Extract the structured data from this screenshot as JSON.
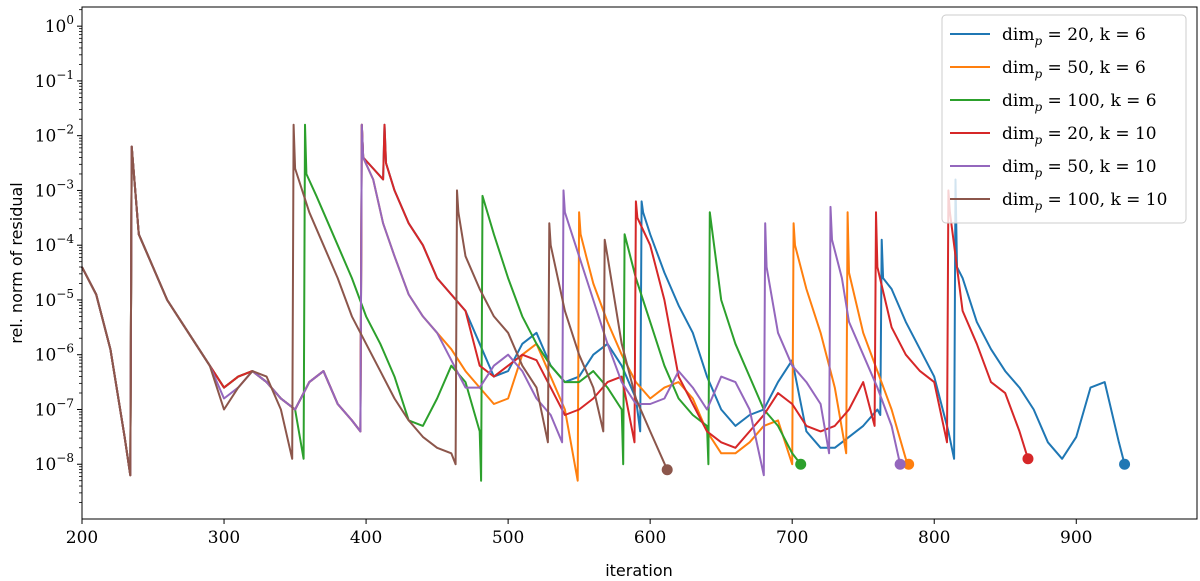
{
  "chart_data": {
    "type": "line",
    "xlabel": "iteration",
    "ylabel": "rel. norm of residual",
    "xlim": [
      200,
      985
    ],
    "ylim_exponent": [
      -9,
      0.35
    ],
    "y_scale": "log",
    "x_ticks": [
      200,
      300,
      400,
      500,
      600,
      700,
      800,
      900
    ],
    "x_tick_labels": [
      "200",
      "300",
      "400",
      "500",
      "600",
      "700",
      "800",
      "900"
    ],
    "y_ticks": [
      {
        "exp": 0,
        "mantissa": "10",
        "sup": "0"
      },
      {
        "exp": -1,
        "mantissa": "10",
        "sup": "−1"
      },
      {
        "exp": -2,
        "mantissa": "10",
        "sup": "−2"
      },
      {
        "exp": -3,
        "mantissa": "10",
        "sup": "−3"
      },
      {
        "exp": -4,
        "mantissa": "10",
        "sup": "−4"
      },
      {
        "exp": -5,
        "mantissa": "10",
        "sup": "−5"
      },
      {
        "exp": -6,
        "mantissa": "10",
        "sup": "−6"
      },
      {
        "exp": -7,
        "mantissa": "10",
        "sup": "−7"
      },
      {
        "exp": -8,
        "mantissa": "10",
        "sup": "−8"
      }
    ],
    "legend_position": "top-right",
    "series": [
      {
        "name": "dim_p = 20, k = 6",
        "legend_label": "dimp = 20, k = 6",
        "color": "#1f77b4",
        "x": [
          200,
          210,
          220,
          230,
          234,
          235,
          240,
          250,
          260,
          270,
          280,
          290,
          300,
          310,
          320,
          330,
          340,
          350,
          360,
          370,
          380,
          390,
          396,
          397,
          398,
          405,
          412,
          413,
          414,
          420,
          430,
          440,
          450,
          460,
          470,
          480,
          490,
          500,
          510,
          520,
          530,
          540,
          550,
          560,
          570,
          580,
          590,
          593,
          594,
          595,
          600,
          610,
          620,
          630,
          640,
          650,
          660,
          670,
          680,
          690,
          700,
          710,
          720,
          730,
          740,
          750,
          760,
          762,
          763,
          764,
          770,
          780,
          790,
          800,
          810,
          814,
          815,
          816,
          820,
          830,
          840,
          850,
          860,
          870,
          880,
          890,
          900,
          910,
          920,
          930,
          934
        ],
        "y": [
          -4.4,
          -4.9,
          -5.9,
          -7.5,
          -8.2,
          -2.2,
          -3.8,
          -4.4,
          -5.0,
          -5.4,
          -5.8,
          -6.2,
          -6.6,
          -6.4,
          -6.3,
          -6.5,
          -6.8,
          -7.0,
          -6.5,
          -6.3,
          -6.9,
          -7.2,
          -7.4,
          -1.8,
          -2.4,
          -2.6,
          -2.8,
          -1.8,
          -2.5,
          -3.0,
          -3.6,
          -4.0,
          -4.6,
          -4.9,
          -5.2,
          -5.8,
          -6.4,
          -6.3,
          -5.8,
          -5.6,
          -6.2,
          -6.5,
          -6.4,
          -6.0,
          -5.8,
          -6.2,
          -6.8,
          -7.4,
          -3.2,
          -3.4,
          -3.8,
          -4.5,
          -5.1,
          -5.6,
          -6.4,
          -7.0,
          -7.3,
          -7.1,
          -7.0,
          -6.5,
          -6.1,
          -7.4,
          -7.7,
          -7.7,
          -7.5,
          -7.3,
          -7.0,
          -7.1,
          -3.9,
          -4.6,
          -4.8,
          -5.4,
          -5.9,
          -6.4,
          -7.4,
          -7.9,
          -2.8,
          -4.4,
          -4.6,
          -5.4,
          -5.9,
          -6.3,
          -6.6,
          -7.0,
          -7.6,
          -7.9,
          -7.5,
          -6.6,
          -6.5,
          -7.6,
          -8.0
        ]
      },
      {
        "name": "dim_p = 50, k = 6",
        "legend_label": "dimp = 50, k = 6",
        "color": "#ff7f0e",
        "x": [
          200,
          210,
          220,
          230,
          234,
          235,
          240,
          250,
          260,
          270,
          280,
          290,
          300,
          310,
          320,
          330,
          340,
          350,
          360,
          370,
          380,
          390,
          396,
          397,
          398,
          405,
          412,
          420,
          430,
          440,
          450,
          460,
          470,
          480,
          490,
          500,
          510,
          520,
          530,
          540,
          549,
          550,
          551,
          555,
          560,
          570,
          580,
          590,
          600,
          610,
          620,
          630,
          640,
          650,
          660,
          670,
          680,
          690,
          700,
          701,
          702,
          710,
          720,
          730,
          738,
          739,
          740,
          750,
          760,
          770,
          780,
          782
        ],
        "y": [
          -4.4,
          -4.9,
          -5.9,
          -7.5,
          -8.2,
          -2.2,
          -3.8,
          -4.4,
          -5.0,
          -5.4,
          -5.8,
          -6.2,
          -6.6,
          -6.4,
          -6.3,
          -6.5,
          -6.8,
          -7.0,
          -6.5,
          -6.3,
          -6.9,
          -7.2,
          -7.4,
          -1.8,
          -2.4,
          -2.8,
          -3.6,
          -4.2,
          -4.9,
          -5.3,
          -5.6,
          -5.9,
          -6.3,
          -6.6,
          -6.9,
          -6.8,
          -6.0,
          -5.8,
          -6.4,
          -7.0,
          -8.3,
          -3.4,
          -3.8,
          -4.2,
          -4.7,
          -5.4,
          -6.0,
          -6.5,
          -6.8,
          -6.6,
          -6.5,
          -6.8,
          -7.4,
          -7.8,
          -7.8,
          -7.6,
          -7.3,
          -7.2,
          -8.0,
          -3.6,
          -4.0,
          -4.8,
          -5.6,
          -6.6,
          -7.8,
          -3.4,
          -4.5,
          -5.6,
          -6.3,
          -7.0,
          -7.9,
          -8.0
        ]
      },
      {
        "name": "dim_p = 100, k = 6",
        "legend_label": "dimp = 100, k = 6",
        "color": "#2ca02c",
        "x": [
          200,
          210,
          220,
          230,
          234,
          235,
          240,
          250,
          260,
          270,
          280,
          290,
          300,
          310,
          320,
          330,
          340,
          350,
          356,
          357,
          358,
          365,
          370,
          380,
          390,
          400,
          410,
          420,
          430,
          440,
          450,
          460,
          470,
          480,
          481,
          482,
          490,
          500,
          510,
          520,
          530,
          540,
          550,
          560,
          570,
          580,
          581,
          582,
          590,
          600,
          610,
          620,
          630,
          640,
          641,
          642,
          650,
          660,
          670,
          680,
          690,
          700,
          706
        ],
        "y": [
          -4.4,
          -4.9,
          -5.9,
          -7.5,
          -8.2,
          -2.2,
          -3.8,
          -4.4,
          -5.0,
          -5.4,
          -5.8,
          -6.2,
          -6.6,
          -6.4,
          -6.3,
          -6.5,
          -6.8,
          -7.0,
          -7.9,
          -1.8,
          -2.7,
          -3.1,
          -3.4,
          -4.0,
          -4.6,
          -5.3,
          -5.8,
          -6.4,
          -7.2,
          -7.3,
          -6.8,
          -6.2,
          -6.5,
          -7.4,
          -8.3,
          -3.1,
          -3.8,
          -4.6,
          -5.3,
          -5.8,
          -6.2,
          -6.5,
          -6.5,
          -6.3,
          -6.6,
          -7.0,
          -8.0,
          -3.8,
          -4.6,
          -5.4,
          -6.2,
          -6.8,
          -7.1,
          -7.3,
          -8.0,
          -3.4,
          -5.0,
          -5.8,
          -6.4,
          -7.0,
          -7.3,
          -7.8,
          -8.0
        ]
      },
      {
        "name": "dim_p = 20, k = 10",
        "legend_label": "dimp = 20, k = 10",
        "color": "#d62728",
        "x": [
          200,
          210,
          220,
          230,
          234,
          235,
          240,
          250,
          260,
          270,
          280,
          290,
          300,
          310,
          320,
          330,
          340,
          350,
          360,
          370,
          380,
          390,
          396,
          397,
          398,
          405,
          412,
          413,
          414,
          420,
          430,
          440,
          450,
          460,
          470,
          480,
          490,
          500,
          510,
          520,
          530,
          540,
          550,
          560,
          570,
          580,
          589,
          590,
          591,
          600,
          610,
          620,
          630,
          640,
          650,
          660,
          670,
          680,
          690,
          700,
          710,
          720,
          730,
          740,
          750,
          758,
          759,
          760,
          770,
          780,
          790,
          800,
          809,
          810,
          811,
          820,
          830,
          840,
          850,
          860,
          866
        ],
        "y": [
          -4.4,
          -4.9,
          -5.9,
          -7.5,
          -8.2,
          -2.2,
          -3.8,
          -4.4,
          -5.0,
          -5.4,
          -5.8,
          -6.2,
          -6.6,
          -6.4,
          -6.3,
          -6.5,
          -6.8,
          -7.0,
          -6.5,
          -6.3,
          -6.9,
          -7.2,
          -7.4,
          -1.8,
          -2.4,
          -2.6,
          -2.8,
          -1.8,
          -2.5,
          -3.0,
          -3.6,
          -4.0,
          -4.6,
          -4.9,
          -5.2,
          -6.2,
          -6.4,
          -6.2,
          -6.0,
          -6.1,
          -6.6,
          -7.1,
          -7.0,
          -6.8,
          -6.5,
          -6.4,
          -7.6,
          -3.2,
          -3.5,
          -4.0,
          -5.0,
          -6.4,
          -6.9,
          -7.4,
          -7.6,
          -7.7,
          -7.4,
          -7.1,
          -6.7,
          -6.9,
          -7.3,
          -7.4,
          -7.3,
          -7.0,
          -6.5,
          -7.3,
          -3.4,
          -4.4,
          -5.5,
          -6.0,
          -6.3,
          -6.5,
          -7.6,
          -3.0,
          -3.4,
          -5.2,
          -5.8,
          -6.5,
          -6.7,
          -7.4,
          -7.9
        ]
      },
      {
        "name": "dim_p = 50, k = 10",
        "legend_label": "dimp = 50, k = 10",
        "color": "#9467bd",
        "x": [
          200,
          210,
          220,
          230,
          234,
          235,
          240,
          250,
          260,
          270,
          280,
          290,
          300,
          310,
          320,
          330,
          340,
          350,
          360,
          370,
          380,
          390,
          396,
          397,
          398,
          405,
          412,
          420,
          430,
          440,
          450,
          460,
          470,
          480,
          490,
          500,
          510,
          520,
          530,
          538,
          539,
          540,
          550,
          560,
          570,
          580,
          590,
          600,
          610,
          620,
          630,
          640,
          650,
          660,
          670,
          680,
          681,
          682,
          690,
          700,
          710,
          720,
          726,
          727,
          728,
          735,
          740,
          750,
          760,
          770,
          776
        ],
        "y": [
          -4.4,
          -4.9,
          -5.9,
          -7.5,
          -8.2,
          -2.2,
          -3.8,
          -4.4,
          -5.0,
          -5.4,
          -5.8,
          -6.2,
          -6.8,
          -6.6,
          -6.3,
          -6.5,
          -6.8,
          -7.0,
          -6.5,
          -6.3,
          -6.9,
          -7.2,
          -7.4,
          -1.8,
          -2.4,
          -2.8,
          -3.6,
          -4.2,
          -4.9,
          -5.3,
          -5.6,
          -6.1,
          -6.6,
          -6.6,
          -6.2,
          -6.0,
          -6.3,
          -6.8,
          -7.1,
          -7.6,
          -3.0,
          -3.4,
          -4.2,
          -5.0,
          -5.8,
          -6.5,
          -6.9,
          -6.9,
          -6.8,
          -6.3,
          -6.6,
          -7.0,
          -6.4,
          -6.5,
          -7.0,
          -8.2,
          -3.6,
          -4.4,
          -5.6,
          -6.2,
          -6.5,
          -6.9,
          -7.8,
          -3.3,
          -3.9,
          -4.6,
          -5.4,
          -6.0,
          -6.6,
          -7.3,
          -8.0
        ]
      },
      {
        "name": "dim_p = 100, k = 10",
        "legend_label": "dimp = 100, k = 10",
        "color": "#8c564b",
        "x": [
          200,
          210,
          220,
          230,
          234,
          235,
          240,
          250,
          260,
          270,
          280,
          290,
          300,
          310,
          320,
          330,
          340,
          348,
          349,
          350,
          360,
          370,
          380,
          390,
          400,
          410,
          420,
          430,
          440,
          450,
          460,
          463,
          464,
          465,
          470,
          480,
          490,
          500,
          510,
          520,
          528,
          529,
          530,
          540,
          550,
          560,
          567,
          568,
          570,
          580,
          590,
          600,
          612
        ],
        "y": [
          -4.4,
          -4.9,
          -5.9,
          -7.5,
          -8.2,
          -2.2,
          -3.8,
          -4.4,
          -5.0,
          -5.4,
          -5.8,
          -6.2,
          -7.0,
          -6.6,
          -6.3,
          -6.4,
          -7.0,
          -7.9,
          -1.8,
          -2.6,
          -3.4,
          -4.0,
          -4.6,
          -5.3,
          -5.8,
          -6.3,
          -6.8,
          -7.2,
          -7.5,
          -7.7,
          -7.8,
          -8.0,
          -3.0,
          -3.4,
          -4.2,
          -4.8,
          -5.3,
          -5.6,
          -6.2,
          -6.6,
          -7.6,
          -3.6,
          -4.0,
          -5.2,
          -6.0,
          -6.6,
          -7.4,
          -3.9,
          -4.2,
          -5.8,
          -6.8,
          -7.4,
          -8.1
        ]
      }
    ]
  }
}
